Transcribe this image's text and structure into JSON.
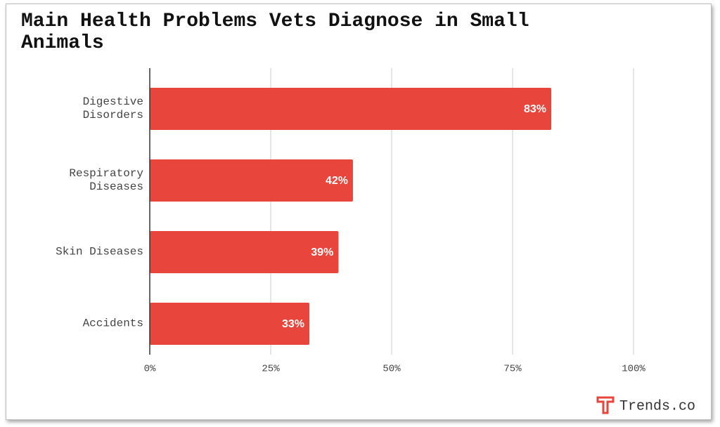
{
  "chart_data": {
    "type": "barh",
    "title": "Main Health Problems Vets Diagnose in Small Animals",
    "categories": [
      "Digestive Disorders",
      "Respiratory Diseases",
      "Skin Diseases",
      "Accidents"
    ],
    "values": [
      83,
      42,
      39,
      33
    ],
    "value_labels": [
      "83%",
      "42%",
      "39%",
      "33%"
    ],
    "color": "#e8453c",
    "xlim": [
      0,
      100
    ],
    "xticks": [
      {
        "value": 0,
        "label": "0%"
      },
      {
        "value": 25,
        "label": "25%"
      },
      {
        "value": 50,
        "label": "50%"
      },
      {
        "value": 75,
        "label": "75%"
      },
      {
        "value": 100,
        "label": "100%"
      }
    ],
    "grid": true,
    "watermark": "Trends.co"
  }
}
